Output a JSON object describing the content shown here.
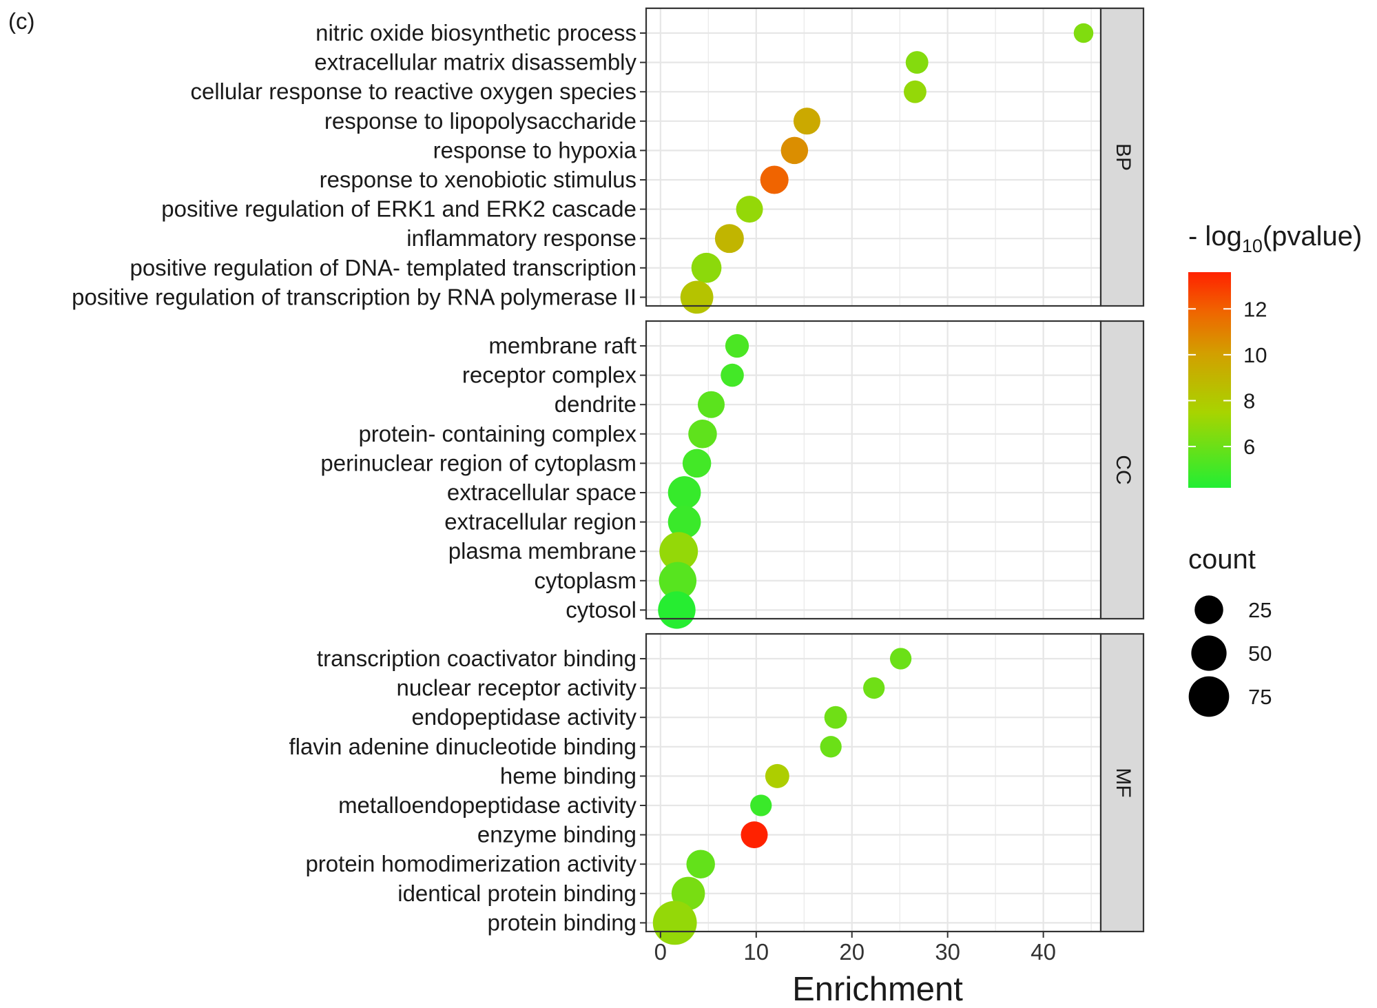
{
  "panel_tag": "(c)",
  "colors": {
    "low": "#22ee33",
    "mid": "#a8d400",
    "high": "#ff2200",
    "grid": "#e6e6e6",
    "strip_bg": "#d9d9d9",
    "border": "#333333"
  },
  "chart_data": {
    "type": "scatter",
    "xlabel": "Enrichment",
    "xlim": [
      -1.5,
      46
    ],
    "xticks": [
      0,
      10,
      20,
      30,
      40
    ],
    "color_legend": {
      "title_prefix": "- log",
      "title_sub": "10",
      "title_suffix": "(pvalue)",
      "range": [
        4.2,
        13.6
      ],
      "ticks": [
        6,
        8,
        10,
        12
      ]
    },
    "size_legend": {
      "title": "count",
      "values": [
        25,
        50,
        75
      ]
    },
    "facets": [
      {
        "name": "BP",
        "terms": [
          {
            "term": "nitric oxide biosynthetic process",
            "enrichment": 44.2,
            "pvalue_log": 6.5,
            "count": 5
          },
          {
            "term": "extracellular matrix disassembly",
            "enrichment": 26.8,
            "pvalue_log": 6.6,
            "count": 10
          },
          {
            "term": "cellular response to reactive oxygen species",
            "enrichment": 26.6,
            "pvalue_log": 7.0,
            "count": 10
          },
          {
            "term": "response to lipopolysaccharide",
            "enrichment": 15.3,
            "pvalue_log": 9.6,
            "count": 20
          },
          {
            "term": "response to hypoxia",
            "enrichment": 14.0,
            "pvalue_log": 10.6,
            "count": 21
          },
          {
            "term": "response to xenobiotic stimulus",
            "enrichment": 11.9,
            "pvalue_log": 11.9,
            "count": 24
          },
          {
            "term": "positive regulation of ERK1 and ERK2 cascade",
            "enrichment": 9.3,
            "pvalue_log": 7.0,
            "count": 20
          },
          {
            "term": "inflammatory response",
            "enrichment": 7.2,
            "pvalue_log": 9.0,
            "count": 26
          },
          {
            "term": "positive regulation of DNA- templated transcription",
            "enrichment": 4.8,
            "pvalue_log": 6.8,
            "count": 30
          },
          {
            "term": "positive regulation of transcription by RNA polymerase II",
            "enrichment": 3.8,
            "pvalue_log": 8.3,
            "count": 40
          }
        ]
      },
      {
        "name": "CC",
        "terms": [
          {
            "term": "membrane raft",
            "enrichment": 8.0,
            "pvalue_log": 5.2,
            "count": 12
          },
          {
            "term": "receptor complex",
            "enrichment": 7.5,
            "pvalue_log": 5.0,
            "count": 11
          },
          {
            "term": "dendrite",
            "enrichment": 5.3,
            "pvalue_log": 5.6,
            "count": 20
          },
          {
            "term": "protein- containing complex",
            "enrichment": 4.4,
            "pvalue_log": 5.7,
            "count": 25
          },
          {
            "term": "perinuclear region of cytoplasm",
            "enrichment": 3.8,
            "pvalue_log": 5.0,
            "count": 25
          },
          {
            "term": "extracellular space",
            "enrichment": 2.5,
            "pvalue_log": 4.7,
            "count": 40
          },
          {
            "term": "extracellular region",
            "enrichment": 2.5,
            "pvalue_log": 4.8,
            "count": 40
          },
          {
            "term": "plasma membrane",
            "enrichment": 1.9,
            "pvalue_log": 7.0,
            "count": 65
          },
          {
            "term": "cytoplasm",
            "enrichment": 1.8,
            "pvalue_log": 5.5,
            "count": 60
          },
          {
            "term": "cytosol",
            "enrichment": 1.7,
            "pvalue_log": 4.3,
            "count": 60
          }
        ]
      },
      {
        "name": "MF",
        "terms": [
          {
            "term": "transcription coactivator binding",
            "enrichment": 25.1,
            "pvalue_log": 6.0,
            "count": 8
          },
          {
            "term": "nuclear receptor activity",
            "enrichment": 22.3,
            "pvalue_log": 6.1,
            "count": 8
          },
          {
            "term": "endopeptidase activity",
            "enrichment": 18.3,
            "pvalue_log": 6.1,
            "count": 10
          },
          {
            "term": "flavin adenine dinucleotide binding",
            "enrichment": 17.8,
            "pvalue_log": 6.0,
            "count": 8
          },
          {
            "term": "heme binding",
            "enrichment": 12.2,
            "pvalue_log": 7.8,
            "count": 13
          },
          {
            "term": "metalloendopeptidase activity",
            "enrichment": 10.5,
            "pvalue_log": 4.8,
            "count": 8
          },
          {
            "term": "enzyme binding",
            "enrichment": 9.8,
            "pvalue_log": 13.6,
            "count": 20
          },
          {
            "term": "protein homodimerization activity",
            "enrichment": 4.2,
            "pvalue_log": 5.8,
            "count": 25
          },
          {
            "term": "identical protein binding",
            "enrichment": 2.9,
            "pvalue_log": 6.3,
            "count": 42
          },
          {
            "term": "protein binding",
            "enrichment": 1.5,
            "pvalue_log": 7.0,
            "count": 95
          }
        ]
      }
    ]
  }
}
